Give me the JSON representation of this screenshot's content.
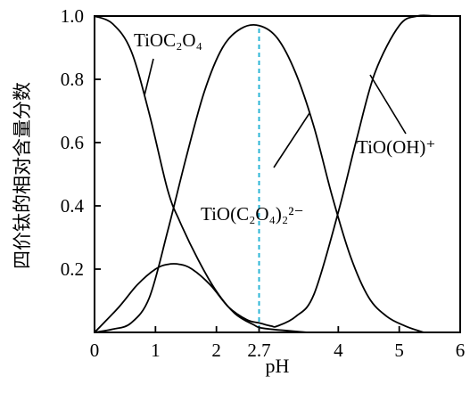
{
  "chart_data": {
    "type": "line",
    "xlabel": "pH",
    "ylabel": "四价钛的相对含量分数",
    "xlim": [
      0,
      6
    ],
    "ylim": [
      0,
      1.0
    ],
    "grid": false,
    "x_ticks": [
      {
        "value": 0,
        "label": "0"
      },
      {
        "value": 1,
        "label": "1"
      },
      {
        "value": 2,
        "label": "2"
      },
      {
        "value": 2.7,
        "label": "2.7"
      },
      {
        "value": 4,
        "label": "4"
      },
      {
        "value": 5,
        "label": "5"
      },
      {
        "value": 6,
        "label": "6"
      }
    ],
    "y_ticks": [
      {
        "value": 1.0,
        "label": "1.0"
      },
      {
        "value": 0.8,
        "label": "0.8"
      },
      {
        "value": 0.6,
        "label": "0.6"
      },
      {
        "value": 0.4,
        "label": "0.4"
      },
      {
        "value": 0.2,
        "label": "0.2"
      }
    ],
    "reference_line": {
      "x": 2.7,
      "style": "dashed",
      "color": "#2bb5d6"
    },
    "series": [
      {
        "x": [
          0,
          0.3,
          0.6,
          0.9,
          1.2,
          1.4,
          1.7,
          2.0,
          2.3,
          2.6,
          2.8,
          3.5
        ],
        "y": [
          1.0,
          0.975,
          0.89,
          0.69,
          0.45,
          0.35,
          0.23,
          0.13,
          0.06,
          0.025,
          0.012,
          0.0
        ]
      },
      {
        "x": [
          0,
          0.4,
          0.7,
          1.0,
          1.2,
          1.4,
          1.6,
          1.9,
          2.2,
          2.5,
          2.7,
          2.9,
          3.0,
          3.3,
          3.6,
          4.0,
          4.3,
          4.6,
          5.0,
          5.3,
          5.6,
          6.0
        ],
        "y": [
          0,
          0.08,
          0.15,
          0.2,
          0.215,
          0.215,
          0.2,
          0.15,
          0.08,
          0.04,
          0.03,
          0.02,
          0.02,
          0.05,
          0.12,
          0.38,
          0.61,
          0.82,
          0.97,
          1.0,
          1.0,
          1.0
        ]
      },
      {
        "x": [
          0,
          0.3,
          0.6,
          0.9,
          1.2,
          1.5,
          1.8,
          2.1,
          2.4,
          2.7,
          3.0,
          3.3,
          3.6,
          3.9,
          4.2,
          4.5,
          4.8,
          5.1,
          5.4
        ],
        "y": [
          0.0,
          0.01,
          0.03,
          0.11,
          0.32,
          0.55,
          0.76,
          0.9,
          0.96,
          0.97,
          0.93,
          0.82,
          0.65,
          0.43,
          0.24,
          0.11,
          0.05,
          0.02,
          0.0
        ]
      }
    ],
    "annotations": [
      {
        "text": "TiOC₂O₄",
        "series": 0
      },
      {
        "text": "TiO(C₂O₄)₂²⁻",
        "series": 2
      },
      {
        "text": "TiO(OH)⁺",
        "series": 1
      }
    ]
  }
}
